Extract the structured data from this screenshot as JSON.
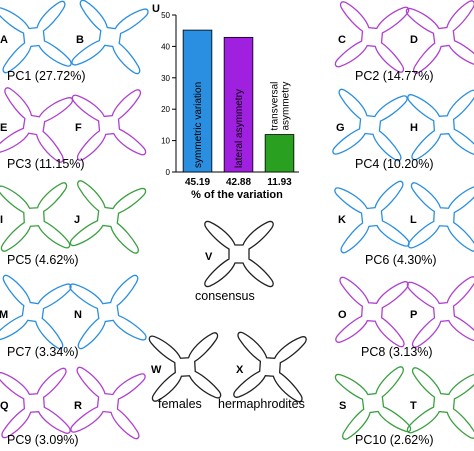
{
  "panel_label_chart": "U",
  "chart_data": {
    "type": "bar",
    "categories": [
      "symmetric variation",
      "lateral asymmetry",
      "transversal asymmetry"
    ],
    "values": [
      45.19,
      42.88,
      11.93
    ],
    "value_labels": [
      "45.19",
      "42.88",
      "11.93"
    ],
    "bar_colors": [
      "#2a8fe0",
      "#a020e0",
      "#2aa020"
    ],
    "xlabel": "% of the variation",
    "ylabel": "",
    "ylim": [
      0,
      50
    ],
    "yticks": [
      "0",
      "10",
      "20",
      "30",
      "40",
      "50"
    ],
    "bar_labels": [
      "symmetric variation",
      "lateral asymmetry",
      [
        "transversal",
        "asymmetry"
      ]
    ]
  },
  "shapes": [
    {
      "letter": "A",
      "color": "#2a8fe0"
    },
    {
      "letter": "B",
      "color": "#2a8fe0"
    },
    {
      "letter": "C",
      "color": "#b040d0"
    },
    {
      "letter": "D",
      "color": "#b040d0"
    },
    {
      "letter": "E",
      "color": "#b040d0"
    },
    {
      "letter": "F",
      "color": "#b040d0"
    },
    {
      "letter": "G",
      "color": "#2a8fe0"
    },
    {
      "letter": "H",
      "color": "#2a8fe0"
    },
    {
      "letter": "I",
      "color": "#3aa040"
    },
    {
      "letter": "J",
      "color": "#3aa040"
    },
    {
      "letter": "K",
      "color": "#2a8fe0"
    },
    {
      "letter": "L",
      "color": "#2a8fe0"
    },
    {
      "letter": "M",
      "color": "#2a8fe0"
    },
    {
      "letter": "N",
      "color": "#2a8fe0"
    },
    {
      "letter": "O",
      "color": "#b040d0"
    },
    {
      "letter": "P",
      "color": "#b040d0"
    },
    {
      "letter": "Q",
      "color": "#b040d0"
    },
    {
      "letter": "R",
      "color": "#b040d0"
    },
    {
      "letter": "S",
      "color": "#3aa040"
    },
    {
      "letter": "T",
      "color": "#3aa040"
    },
    {
      "letter": "V",
      "color": "#222222"
    },
    {
      "letter": "W",
      "color": "#222222"
    },
    {
      "letter": "X",
      "color": "#222222"
    }
  ],
  "captions": {
    "pc1": "PC1 (27.72%)",
    "pc2": "PC2 (14.77%)",
    "pc3": "PC3 (11.15%)",
    "pc4": "PC4 (10.20%)",
    "pc5": "PC5 (4.62%)",
    "pc6": "PC6 (4.30%)",
    "pc7": "PC7 (3.34%)",
    "pc8": "PC8 (3.13%)",
    "pc9": "PC9 (3.09%)",
    "pc10": "PC10 (2.62%)",
    "consensus": "consensus",
    "females": "females",
    "hermaphrodites": "hermaphrodites"
  }
}
